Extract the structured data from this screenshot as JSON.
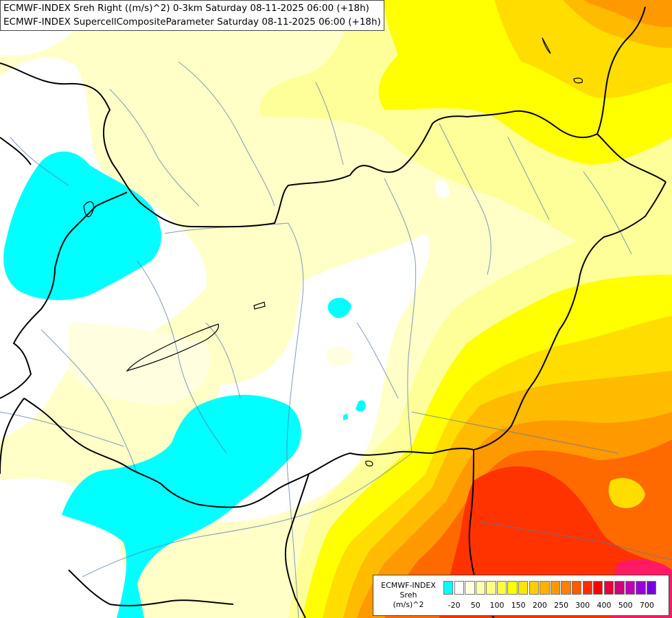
{
  "title": {
    "line1": "ECMWF-INDEX Sreh Right ((m/s)^2) 0-3km Saturday 08-11-2025 06:00 (+18h)",
    "line2": "ECMWF-INDEX SupercellCompositeParameter Saturday 08-11-2025 06:00 (+18h)"
  },
  "legend": {
    "line1": "ECMWF-INDEX",
    "line2": "Sreh",
    "line3": "(m/s)^2",
    "colors": [
      "#00ffff",
      "#ffffff",
      "#ffffe0",
      "#ffffb0",
      "#ffff80",
      "#ffff40",
      "#ffff00",
      "#ffe600",
      "#ffcc00",
      "#ffb300",
      "#ff9900",
      "#ff7f00",
      "#ff5a00",
      "#ff2e00",
      "#ff0000",
      "#e6003c",
      "#d2007a",
      "#c000b0",
      "#9a00d8",
      "#7800e0",
      "#5000c0",
      "#2c0090",
      "#10006a"
    ],
    "ticks": [
      {
        "label": "-20",
        "slot": 1
      },
      {
        "label": "50",
        "slot": 3
      },
      {
        "label": "100",
        "slot": 5
      },
      {
        "label": "150",
        "slot": 7
      },
      {
        "label": "200",
        "slot": 9
      },
      {
        "label": "250",
        "slot": 11
      },
      {
        "label": "300",
        "slot": 13
      },
      {
        "label": "400",
        "slot": 15
      },
      {
        "label": "500",
        "slot": 17
      },
      {
        "label": "700",
        "slot": 19
      }
    ]
  },
  "fill_colors": {
    "cyan": "#00ffff",
    "pale_yellow": "#ffffc8",
    "light_yellow": "#ffff99",
    "yellow": "#ffff00",
    "gold": "#ffdd00",
    "amber": "#ffbb00",
    "orange": "#ff9900",
    "dark_orange": "#ff6a00",
    "red_orange": "#ff3300",
    "magenta": "#ff1a66"
  }
}
